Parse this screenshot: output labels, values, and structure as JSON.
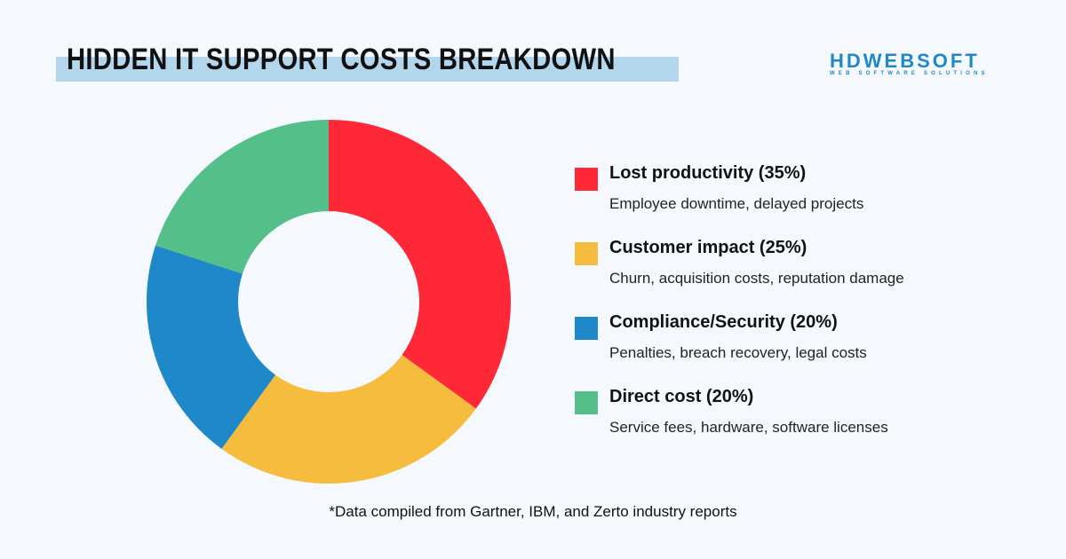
{
  "title": "HIDDEN IT SUPPORT COSTS BREAKDOWN",
  "logo": {
    "main": "HDWEBSOFT",
    "sub": "WEB SOFTWARE SOLUTIONS"
  },
  "chart_data": {
    "type": "pie",
    "donut": true,
    "legend_position": "right",
    "categories": [
      "Lost productivity",
      "Customer impact",
      "Compliance/Security",
      "Direct cost"
    ],
    "values": [
      35,
      25,
      20,
      20
    ],
    "colors": [
      "#ff2837",
      "#f5bc3d",
      "#1e88c8",
      "#55bf8a"
    ]
  },
  "legend": [
    {
      "heading": "Lost productivity (35%)",
      "desc": "Employee downtime, delayed projects"
    },
    {
      "heading": "Customer impact (25%)",
      "desc": "Churn, acquisition costs, reputation damage"
    },
    {
      "heading": "Compliance/Security (20%)",
      "desc": "Penalties, breach recovery, legal costs"
    },
    {
      "heading": "Direct cost (20%)",
      "desc": "Service fees, hardware, software licenses"
    }
  ],
  "footer": "*Data compiled from Gartner, IBM, and Zerto industry reports"
}
